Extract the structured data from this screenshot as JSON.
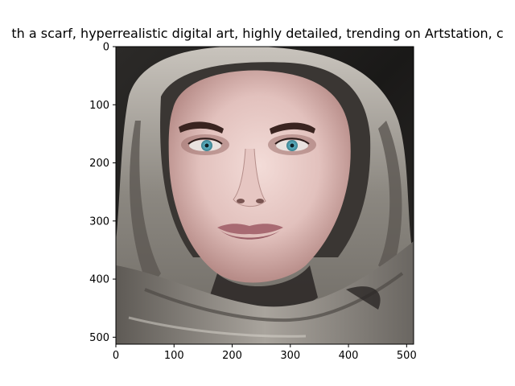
{
  "title": "th a scarf,  hyperrealistic  digital art, highly detailed, trending on Artstation, c",
  "image": {
    "subject": "portrait-of-woman-in-grey-scarf",
    "colors": {
      "background": "#1a1918",
      "scarf": "#8a8680",
      "scarf_light": "#c7c2bb",
      "skin": "#e7c9c6",
      "skin_shadow": "#c79f9b",
      "eyes": "#5fb6c9",
      "lips": "#a86a72",
      "brows": "#3a2420"
    }
  },
  "axes": {
    "x_ticks": [
      "0",
      "100",
      "200",
      "300",
      "400",
      "500"
    ],
    "y_ticks": [
      "0",
      "100",
      "200",
      "300",
      "400",
      "500"
    ],
    "x_values": [
      0,
      100,
      200,
      300,
      400,
      500
    ],
    "y_values": [
      0,
      100,
      200,
      300,
      400,
      500
    ],
    "xlim": [
      0,
      512
    ],
    "ylim": [
      512,
      0
    ]
  }
}
